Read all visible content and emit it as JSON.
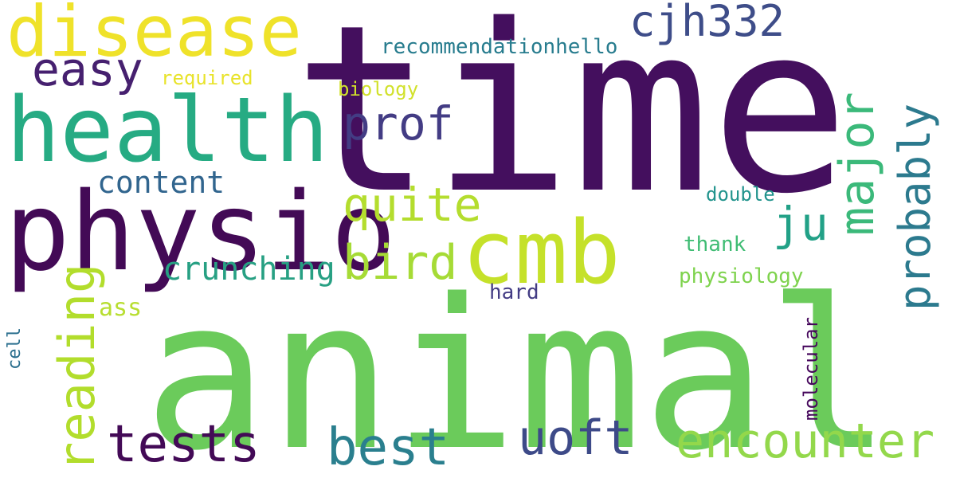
{
  "words": [
    {
      "text": "time",
      "color": "#440f5e"
    },
    {
      "text": "animal",
      "color": "#6bcb5b"
    },
    {
      "text": "disease",
      "color": "#efe22a"
    },
    {
      "text": "health",
      "color": "#26ab83"
    },
    {
      "text": "physio",
      "color": "#430a56"
    },
    {
      "text": "cmb",
      "color": "#c5e12a"
    },
    {
      "text": "encounter",
      "color": "#93d84b"
    },
    {
      "text": "tests",
      "color": "#430a56"
    },
    {
      "text": "best",
      "color": "#2a7f8e"
    },
    {
      "text": "uoft",
      "color": "#3d4a88"
    },
    {
      "text": "bird",
      "color": "#a6db36"
    },
    {
      "text": "quite",
      "color": "#b4dd2e"
    },
    {
      "text": "prof",
      "color": "#433c84"
    },
    {
      "text": "cjh332",
      "color": "#3e4d89"
    },
    {
      "text": "easy",
      "color": "#46206f"
    },
    {
      "text": "ju",
      "color": "#22a187"
    },
    {
      "text": "content",
      "color": "#31658e"
    },
    {
      "text": "crunching",
      "color": "#27a083"
    },
    {
      "text": "ass",
      "color": "#b8de31"
    },
    {
      "text": "recommendationhello",
      "color": "#277c8e"
    },
    {
      "text": "required",
      "color": "#e8e32a"
    },
    {
      "text": "biology",
      "color": "#d1e12a"
    },
    {
      "text": "double",
      "color": "#20938c"
    },
    {
      "text": "thank",
      "color": "#3fbc73"
    },
    {
      "text": "physiology",
      "color": "#7fd34e"
    },
    {
      "text": "hard",
      "color": "#433c84"
    },
    {
      "text": "major",
      "color": "#3bb97a"
    },
    {
      "text": "probably",
      "color": "#2c7a8e"
    },
    {
      "text": "reading",
      "color": "#b2dd2c"
    },
    {
      "text": "molecular",
      "color": "#46085c"
    },
    {
      "text": "cell",
      "color": "#2b6f8e"
    }
  ]
}
